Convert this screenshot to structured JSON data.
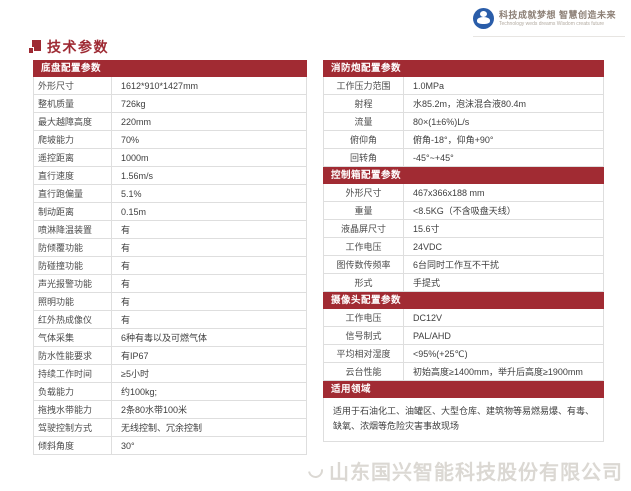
{
  "logo": {
    "tagline_cn": "科技成就梦想 智慧创造未来",
    "tagline_en": "Technology weds dreams Wisdom creats future"
  },
  "page": {
    "title": "技术参数",
    "watermark": "山东国兴智能科技股份有限公司"
  },
  "colors": {
    "accent_red": "#a12b33",
    "border_gray": "#dedede",
    "logo_blue": "#2a5da9",
    "watermark_gray": "#dbd8d3"
  },
  "left_table": {
    "header": "底盘配置参数",
    "rows": [
      {
        "label": "外形尺寸",
        "value": "1612*910*1427mm"
      },
      {
        "label": "整机质量",
        "value": "726kg"
      },
      {
        "label": "最大越障高度",
        "value": "220mm"
      },
      {
        "label": "爬坡能力",
        "value": "70%"
      },
      {
        "label": "遥控距离",
        "value": "1000m"
      },
      {
        "label": "直行速度",
        "value": "1.56m/s"
      },
      {
        "label": "直行跑偏量",
        "value": "5.1%"
      },
      {
        "label": "制动距离",
        "value": "0.15m"
      },
      {
        "label": "喷淋降温装置",
        "value": "有"
      },
      {
        "label": "防倾覆功能",
        "value": "有"
      },
      {
        "label": "防碰撞功能",
        "value": "有"
      },
      {
        "label": "声光报警功能",
        "value": "有"
      },
      {
        "label": "照明功能",
        "value": "有"
      },
      {
        "label": "红外热成像仪",
        "value": "有"
      },
      {
        "label": "气体采集",
        "value": "6种有毒以及可燃气体"
      },
      {
        "label": "防水性能要求",
        "value": "有IP67"
      },
      {
        "label": "持续工作时间",
        "value": "≥5小时"
      },
      {
        "label": "负载能力",
        "value": "约100kg;"
      },
      {
        "label": "拖拽水带能力",
        "value": "2条80水带100米"
      },
      {
        "label": "驾驶控制方式",
        "value": "无线控制、冗余控制"
      },
      {
        "label": "倾斜角度",
        "value": "30°"
      }
    ]
  },
  "right_sections": [
    {
      "header": "消防炮配置参数",
      "rows": [
        {
          "label": "工作压力范围",
          "value": "1.0MPa"
        },
        {
          "label": "射程",
          "value": "水85.2m，泡沫混合液80.4m"
        },
        {
          "label": "流量",
          "value": "80×(1±6%)L/s"
        },
        {
          "label": "俯仰角",
          "value": "俯角-18°，仰角+90°"
        },
        {
          "label": "回转角",
          "value": "-45°~+45°"
        }
      ]
    },
    {
      "header": "控制箱配置参数",
      "rows": [
        {
          "label": "外形尺寸",
          "value": "467x366x188 mm"
        },
        {
          "label": "重量",
          "value": "<8.5KG（不含吸盘天线）"
        },
        {
          "label": "液晶屏尺寸",
          "value": "15.6寸"
        },
        {
          "label": "工作电压",
          "value": "24VDC"
        },
        {
          "label": "图传数传频率",
          "value": "6台同时工作互不干扰"
        },
        {
          "label": "形式",
          "value": "手提式"
        }
      ]
    },
    {
      "header": "摄像头配置参数",
      "rows": [
        {
          "label": "工作电压",
          "value": "DC12V"
        },
        {
          "label": "信号制式",
          "value": "PAL/AHD"
        },
        {
          "label": "平均相对湿度",
          "value": "<95%(+25℃)"
        },
        {
          "label": "云台性能",
          "value": "初始高度≥1400mm，举升后高度≥1900mm"
        }
      ]
    },
    {
      "header": "适用领域",
      "text": "适用于石油化工、油罐区、大型仓库、建筑物等易燃易爆、有毒、缺氧、浓烟等危险灾害事故现场"
    }
  ]
}
